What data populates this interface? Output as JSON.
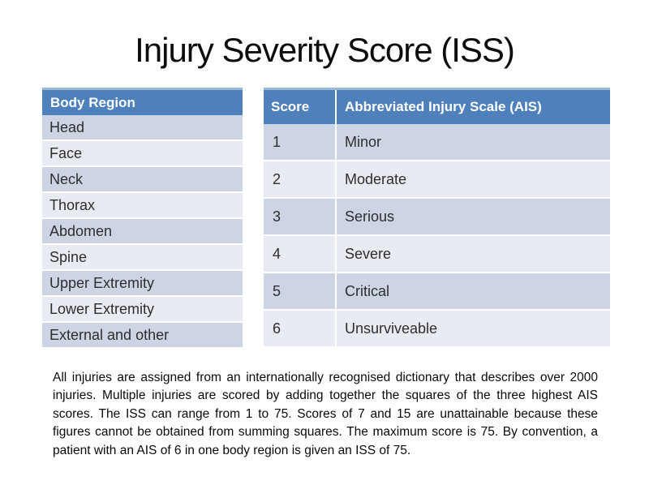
{
  "slide": {
    "title": "Injury Severity Score (ISS)",
    "body_region_table": {
      "header": "Body Region",
      "rows": [
        "Head",
        "Face",
        "Neck",
        "Thorax",
        "Abdomen",
        "Spine",
        "Upper Extremity",
        "Lower Extremity",
        "External and other"
      ]
    },
    "ais_table": {
      "headers": {
        "score": "Score",
        "scale": "Abbreviated Injury Scale (AIS)"
      },
      "rows": [
        {
          "score": "1",
          "label": "Minor"
        },
        {
          "score": "2",
          "label": "Moderate"
        },
        {
          "score": "3",
          "label": "Serious"
        },
        {
          "score": "4",
          "label": "Severe"
        },
        {
          "score": "5",
          "label": "Critical"
        },
        {
          "score": "6",
          "label": "Unsurviveable"
        }
      ]
    },
    "paragraph": "All injuries are assigned from an internationally recognised dictionary that describes over 2000 injuries. Multiple injuries are scored by adding together the squares of the three highest AIS scores. The ISS can range from 1 to 75. Scores of 7 and 15 are unattainable because these figures cannot be obtained from summing squares. The maximum score is 75. By convention, a patient with an AIS of 6 in one body region is given an ISS of 75.",
    "colors": {
      "header_bg": "#4e80bc",
      "header_top_edge": "#9db8d9",
      "band_dark": "#cdd5e5",
      "band_light": "#e9ebf3",
      "header_text": "#ffffff",
      "cell_text": "#2e2e2e"
    }
  }
}
